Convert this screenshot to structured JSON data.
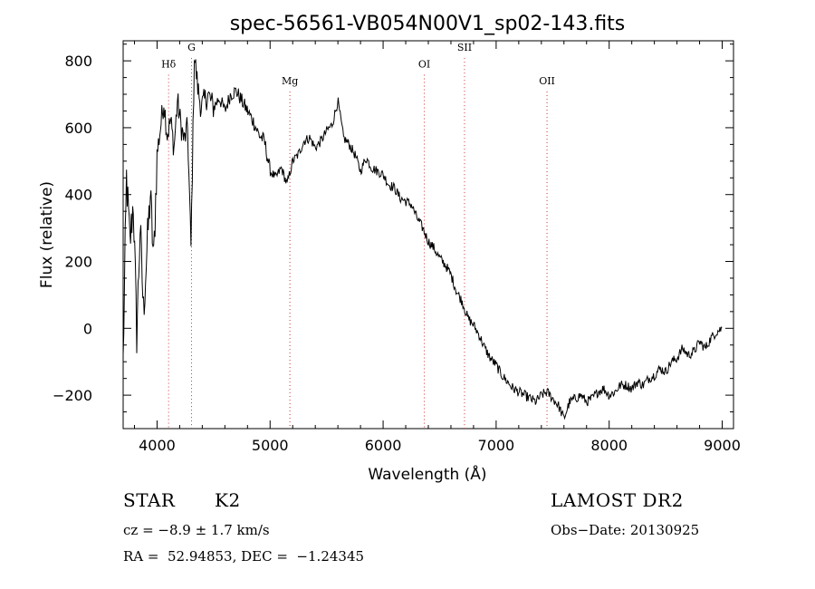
{
  "chart_data": {
    "type": "line",
    "title": "spec-56561-VB054N00V1_sp02-143.fits",
    "xlabel": "Wavelength (Å)",
    "ylabel": "Flux (relative)",
    "xlim": [
      3700,
      9100
    ],
    "ylim": [
      -300,
      860
    ],
    "xticks": [
      4000,
      5000,
      6000,
      7000,
      8000,
      9000
    ],
    "yticks": [
      -200,
      0,
      200,
      400,
      600,
      800
    ],
    "line_color": "#000000",
    "marker_color": "#cc3333",
    "spectral_lines": [
      {
        "label": "Hδ",
        "x": 4102,
        "label_y": 780
      },
      {
        "label": "G",
        "x": 4305,
        "label_y": 830
      },
      {
        "label": "Mg",
        "x": 5175,
        "label_y": 730
      },
      {
        "label": "OI",
        "x": 6364,
        "label_y": 780
      },
      {
        "label": "SII",
        "x": 6720,
        "label_y": 830
      },
      {
        "label": "OII",
        "x": 7450,
        "label_y": 730
      }
    ],
    "series": [
      {
        "x": [
          3700,
          3730,
          3760,
          3790,
          3820,
          3850,
          3880,
          3910,
          3940,
          3970,
          4000,
          4030,
          4060,
          4090,
          4120,
          4150,
          4180,
          4210,
          4240,
          4270,
          4300,
          4330,
          4360,
          4390,
          4420,
          4450,
          4500,
          4550,
          4600,
          4650,
          4700,
          4750,
          4800,
          4850,
          4900,
          4950,
          5000,
          5050,
          5100,
          5150,
          5200,
          5250,
          5300,
          5350,
          5400,
          5450,
          5500,
          5550,
          5600,
          5650,
          5700,
          5750,
          5800,
          5850,
          5900,
          5950,
          6000,
          6050,
          6100,
          6150,
          6200,
          6250,
          6300,
          6350,
          6400,
          6450,
          6500,
          6550,
          6600,
          6650,
          6700,
          6750,
          6800,
          6850,
          6900,
          6950,
          7000,
          7050,
          7100,
          7150,
          7200,
          7250,
          7300,
          7350,
          7400,
          7450,
          7500,
          7550,
          7600,
          7650,
          7700,
          7750,
          7800,
          7850,
          7900,
          7950,
          8000,
          8050,
          8100,
          8150,
          8200,
          8250,
          8300,
          8350,
          8400,
          8450,
          8500,
          8550,
          8600,
          8650,
          8700,
          8750,
          8800,
          8850,
          8900,
          8950,
          9000
        ],
        "y": [
          -100,
          450,
          250,
          380,
          -20,
          300,
          50,
          230,
          400,
          200,
          520,
          600,
          680,
          580,
          620,
          540,
          680,
          610,
          560,
          600,
          240,
          820,
          720,
          660,
          680,
          700,
          660,
          690,
          650,
          700,
          710,
          680,
          650,
          620,
          580,
          560,
          470,
          450,
          480,
          430,
          500,
          520,
          560,
          570,
          540,
          560,
          590,
          610,
          680,
          570,
          550,
          520,
          470,
          510,
          480,
          470,
          460,
          430,
          420,
          390,
          380,
          370,
          330,
          300,
          260,
          240,
          210,
          190,
          160,
          110,
          80,
          30,
          10,
          -20,
          -60,
          -90,
          -110,
          -140,
          -160,
          -180,
          -190,
          -200,
          -210,
          -220,
          -200,
          -190,
          -210,
          -230,
          -270,
          -220,
          -210,
          -200,
          -220,
          -210,
          -190,
          -180,
          -200,
          -190,
          -170,
          -170,
          -180,
          -160,
          -170,
          -150,
          -140,
          -120,
          -130,
          -100,
          -90,
          -60,
          -80,
          -70,
          -40,
          -60,
          -30,
          -10,
          0
        ]
      }
    ]
  },
  "info": {
    "object_class": "STAR",
    "subclass": "K2",
    "survey": "LAMOST DR2",
    "cz": "cz = −8.9 ± 1.7 km/s",
    "obs_date": "Obs−Date: 20130925",
    "coords": "RA =  52.94853, DEC =  −1.24345"
  }
}
